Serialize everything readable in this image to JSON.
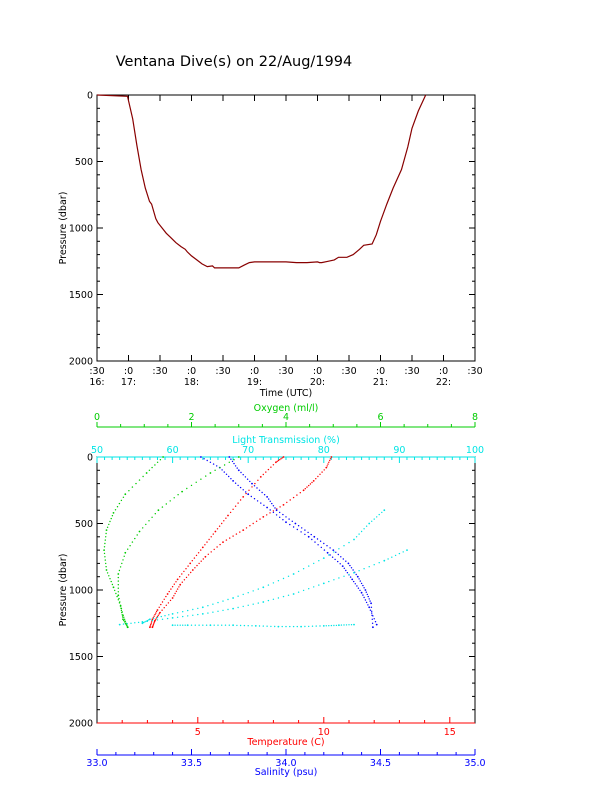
{
  "title": "Ventana Dive(s) on 22/Aug/1994",
  "colors": {
    "axis": "#000000",
    "temperature": "#ff0000",
    "salinity": "#0000ff",
    "oxygen": "#00cc00",
    "light_transmission": "#00e5e5",
    "trace": "#880000"
  },
  "chart_data": [
    {
      "type": "line",
      "title": "Ventana Dive(s) on 22/Aug/1994",
      "xlabel": "Time (UTC)",
      "ylabel": "Pressure (dbar)",
      "x_unit": "minutes since 16:30 UTC",
      "xlim": [
        0,
        360
      ],
      "ylim": [
        2000,
        0
      ],
      "y_ticks": [
        "0",
        "500",
        "1000",
        "1500",
        "2000"
      ],
      "x_ticks_top": [
        ":30",
        ":0",
        ":30",
        ":0",
        ":30",
        ":0",
        ":30",
        ":0",
        ":30",
        ":0",
        ":30",
        ":0",
        ":30"
      ],
      "x_ticks_bottom": [
        "16:",
        "17:",
        "18:",
        "19:",
        "20:",
        "21:",
        "22:"
      ],
      "series": [
        {
          "x": [
            0,
            29,
            34,
            38,
            42,
            46,
            50,
            52,
            56,
            58,
            62,
            66,
            70,
            75,
            80,
            84,
            86,
            90,
            95,
            100,
            105,
            110,
            112,
            120,
            130,
            135,
            140,
            145,
            150,
            160,
            170,
            180,
            190,
            200,
            210,
            212,
            214,
            220,
            226,
            230,
            238,
            244,
            250,
            254,
            262,
            266,
            270,
            276,
            282,
            290,
            296,
            300,
            306,
            313
          ],
          "y": [
            0,
            10,
            180,
            380,
            560,
            700,
            800,
            820,
            930,
            960,
            1000,
            1040,
            1070,
            1110,
            1140,
            1160,
            1180,
            1210,
            1240,
            1270,
            1290,
            1285,
            1300,
            1300,
            1300,
            1300,
            1280,
            1260,
            1255,
            1255,
            1255,
            1255,
            1260,
            1260,
            1255,
            1260,
            1260,
            1250,
            1240,
            1220,
            1220,
            1200,
            1160,
            1130,
            1120,
            1050,
            950,
            820,
            700,
            560,
            390,
            250,
            120,
            0
          ]
        }
      ]
    },
    {
      "type": "scatter",
      "ylabel": "Pressure (dbar)",
      "ylim": [
        2000,
        0
      ],
      "y_ticks": [
        "0",
        "500",
        "1000",
        "1500",
        "2000"
      ],
      "axes": [
        {
          "name": "Oxygen (ml/l)",
          "position": "top",
          "range": [
            0,
            8
          ],
          "ticks": [
            "0",
            "2",
            "4",
            "6",
            "8"
          ],
          "color": "#00cc00"
        },
        {
          "name": "Light Transmission (%)",
          "position": "top",
          "range": [
            50,
            100
          ],
          "ticks": [
            "50",
            "60",
            "70",
            "80",
            "90",
            "100"
          ],
          "color": "#00e5e5"
        },
        {
          "name": "Temperature (C)",
          "position": "bottom",
          "range": [
            1,
            16
          ],
          "ticks": [
            "5",
            "10",
            "15"
          ],
          "color": "#ff0000"
        },
        {
          "name": "Salinity (psu)",
          "position": "bottom",
          "range": [
            33.0,
            35.0
          ],
          "ticks": [
            "33.0",
            "33.5",
            "34.0",
            "34.5",
            "35.0"
          ],
          "color": "#0000ff"
        }
      ],
      "series": [
        {
          "axis": "Temperature (C)",
          "x": [
            3.2,
            3.3,
            3.5,
            4.0,
            4.3,
            4.8,
            5.3,
            6.0,
            6.8,
            7.6,
            8.4,
            9.2,
            9.6,
            10.1,
            10.3
          ],
          "y": [
            1280,
            1230,
            1170,
            1060,
            960,
            850,
            750,
            640,
            550,
            450,
            360,
            250,
            180,
            80,
            0
          ]
        },
        {
          "axis": "Temperature (C)",
          "x": [
            3.1,
            3.2,
            3.4,
            3.8,
            4.2,
            4.7,
            5.2,
            5.7,
            6.2,
            6.8,
            7.5,
            8.1,
            8.4
          ],
          "y": [
            1280,
            1220,
            1150,
            1030,
            920,
            800,
            680,
            560,
            440,
            300,
            150,
            40,
            0
          ]
        },
        {
          "axis": "Salinity (psu)",
          "x": [
            33.7,
            33.75,
            33.82,
            33.9,
            33.95,
            34.05,
            34.15,
            34.25,
            34.33,
            34.38,
            34.42,
            34.45,
            34.46
          ],
          "y": [
            0,
            100,
            200,
            300,
            400,
            500,
            600,
            700,
            800,
            900,
            1000,
            1100,
            1280
          ]
        },
        {
          "axis": "Salinity (psu)",
          "x": [
            33.55,
            33.65,
            33.72,
            33.8,
            33.9,
            34.0,
            34.12,
            34.22,
            34.3,
            34.35,
            34.4,
            34.44,
            34.48
          ],
          "y": [
            0,
            80,
            180,
            280,
            380,
            490,
            600,
            720,
            820,
            920,
            1020,
            1130,
            1260
          ]
        },
        {
          "axis": "Oxygen (ml/l)",
          "x": [
            1.4,
            1.05,
            0.6,
            0.35,
            0.2,
            0.15,
            0.2,
            0.35,
            0.5,
            0.55,
            0.65
          ],
          "y": [
            0,
            120,
            280,
            420,
            550,
            700,
            850,
            980,
            1120,
            1220,
            1280
          ]
        },
        {
          "axis": "Oxygen (ml/l)",
          "x": [
            3.0,
            2.4,
            1.8,
            1.3,
            0.9,
            0.6,
            0.45,
            0.45,
            0.55,
            0.65
          ],
          "y": [
            0,
            120,
            260,
            400,
            560,
            720,
            880,
            1040,
            1190,
            1280
          ]
        },
        {
          "axis": "Light Transmission (%)",
          "x": [
            88,
            86,
            84,
            80,
            76,
            72,
            68,
            64,
            60,
            57,
            56
          ],
          "y": [
            400,
            500,
            620,
            760,
            880,
            980,
            1060,
            1130,
            1180,
            1220,
            1250
          ]
        },
        {
          "axis": "Light Transmission (%)",
          "x": [
            91,
            88,
            84,
            80,
            76,
            72,
            68,
            64,
            60,
            56,
            53
          ],
          "y": [
            700,
            780,
            870,
            950,
            1030,
            1090,
            1140,
            1180,
            1210,
            1240,
            1260
          ]
        },
        {
          "axis": "Light Transmission (%)",
          "x": [
            60,
            62,
            65,
            68,
            71,
            74,
            77,
            80,
            82,
            84
          ],
          "y": [
            1265,
            1265,
            1265,
            1265,
            1270,
            1275,
            1275,
            1270,
            1265,
            1260
          ]
        }
      ]
    }
  ]
}
